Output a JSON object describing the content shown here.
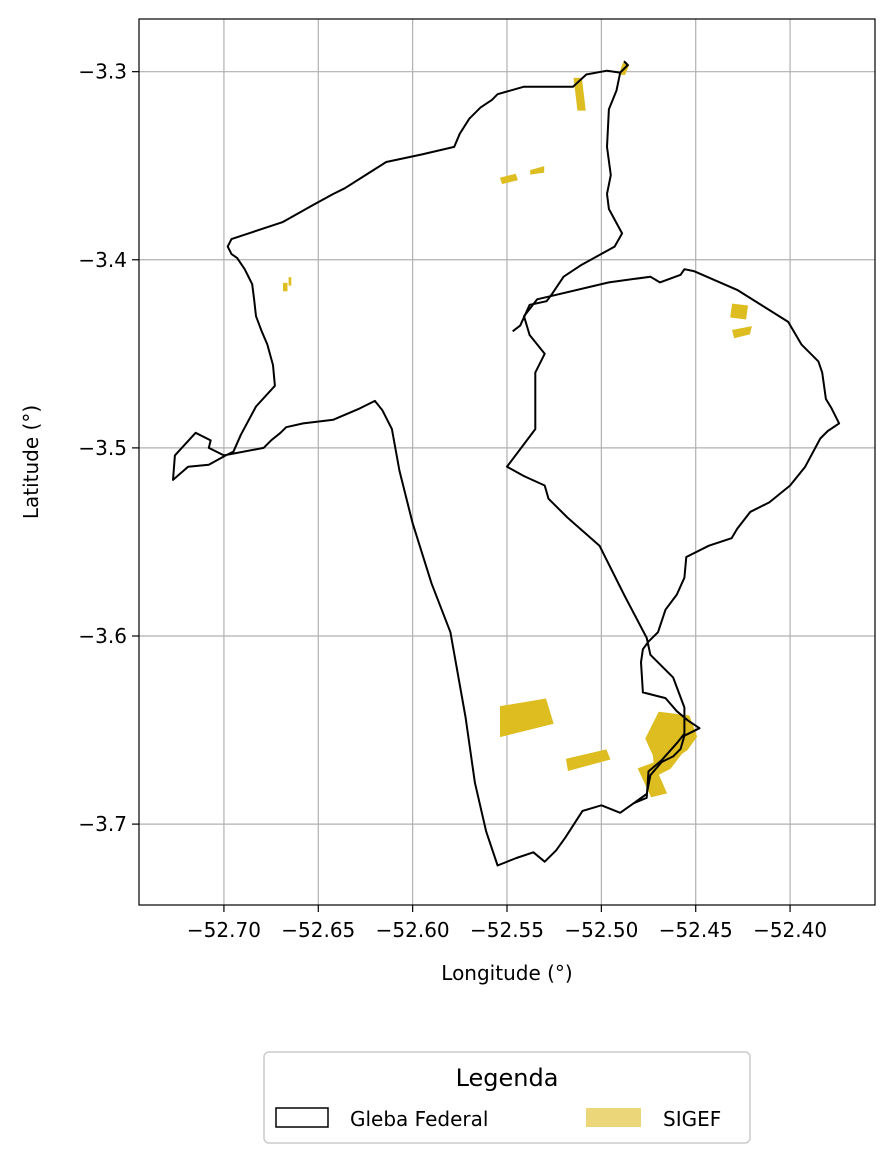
{
  "chart_data": {
    "type": "map",
    "xlabel": "Longitude (°)",
    "ylabel": "Latitude (°)",
    "xlim": [
      -52.745,
      -52.355
    ],
    "ylim": [
      -3.743,
      -3.272
    ],
    "x_ticks": [
      -52.7,
      -52.65,
      -52.6,
      -52.55,
      -52.5,
      -52.45,
      -52.4
    ],
    "x_tick_labels": [
      "−52.70",
      "−52.65",
      "−52.60",
      "−52.55",
      "−52.50",
      "−52.45",
      "−52.40"
    ],
    "y_ticks": [
      -3.3,
      -3.4,
      -3.5,
      -3.6,
      -3.7
    ],
    "y_tick_labels": [
      "−3.3",
      "−3.4",
      "−3.5",
      "−3.6",
      "−3.7"
    ],
    "grid": true,
    "legend": {
      "title": "Legenda",
      "placement": "bottom-center",
      "entries": [
        {
          "label": "Gleba Federal"
        },
        {
          "label": "SIGEF"
        }
      ]
    },
    "colors": {
      "boundary": "#000000",
      "sigef": "#DDBD1F",
      "sigef_legend": "#EBD67A",
      "grid": "#b0b0b0"
    },
    "gleba_federal": [
      [
        -52.488,
        -3.2945
      ],
      [
        -52.486,
        -3.2965
      ],
      [
        -52.49,
        -3.3005
      ],
      [
        -52.497,
        -3.2995
      ],
      [
        -52.508,
        -3.3015
      ],
      [
        -52.515,
        -3.308
      ],
      [
        -52.541,
        -3.308
      ],
      [
        -52.555,
        -3.312
      ],
      [
        -52.558,
        -3.315
      ],
      [
        -52.564,
        -3.319
      ],
      [
        -52.57,
        -3.325
      ],
      [
        -52.575,
        -3.333
      ],
      [
        -52.578,
        -3.34
      ],
      [
        -52.595,
        -3.344
      ],
      [
        -52.614,
        -3.348
      ],
      [
        -52.625,
        -3.355
      ],
      [
        -52.636,
        -3.362
      ],
      [
        -52.642,
        -3.365
      ],
      [
        -52.653,
        -3.371
      ],
      [
        -52.669,
        -3.38
      ],
      [
        -52.69,
        -3.387
      ],
      [
        -52.696,
        -3.389
      ],
      [
        -52.698,
        -3.393
      ],
      [
        -52.696,
        -3.397
      ],
      [
        -52.693,
        -3.399
      ],
      [
        -52.689,
        -3.405
      ],
      [
        -52.685,
        -3.413
      ],
      [
        -52.684,
        -3.421
      ],
      [
        -52.683,
        -3.43
      ],
      [
        -52.68,
        -3.438
      ],
      [
        -52.677,
        -3.445
      ],
      [
        -52.674,
        -3.456
      ],
      [
        -52.673,
        -3.467
      ],
      [
        -52.683,
        -3.478
      ],
      [
        -52.691,
        -3.493
      ],
      [
        -52.695,
        -3.502
      ],
      [
        -52.699,
        -3.504
      ],
      [
        -52.708,
        -3.509
      ],
      [
        -52.719,
        -3.51
      ],
      [
        -52.727,
        -3.517
      ],
      [
        -52.726,
        -3.504
      ],
      [
        -52.715,
        -3.492
      ],
      [
        -52.707,
        -3.496
      ],
      [
        -52.708,
        -3.5
      ],
      [
        -52.7,
        -3.504
      ],
      [
        -52.679,
        -3.5
      ],
      [
        -52.675,
        -3.496
      ],
      [
        -52.67,
        -3.492
      ],
      [
        -52.667,
        -3.489
      ],
      [
        -52.658,
        -3.487
      ],
      [
        -52.642,
        -3.485
      ],
      [
        -52.628,
        -3.479
      ],
      [
        -52.62,
        -3.475
      ],
      [
        -52.616,
        -3.48
      ],
      [
        -52.611,
        -3.49
      ],
      [
        -52.607,
        -3.512
      ],
      [
        -52.6,
        -3.54
      ],
      [
        -52.59,
        -3.572
      ],
      [
        -52.58,
        -3.598
      ],
      [
        -52.572,
        -3.643
      ],
      [
        -52.567,
        -3.678
      ],
      [
        -52.561,
        -3.704
      ],
      [
        -52.555,
        -3.722
      ],
      [
        -52.545,
        -3.718
      ],
      [
        -52.536,
        -3.715
      ],
      [
        -52.53,
        -3.72
      ],
      [
        -52.524,
        -3.714
      ],
      [
        -52.519,
        -3.707
      ],
      [
        -52.51,
        -3.693
      ],
      [
        -52.5,
        -3.69
      ],
      [
        -52.49,
        -3.694
      ],
      [
        -52.483,
        -3.689
      ],
      [
        -52.476,
        -3.686
      ],
      [
        -52.475,
        -3.672
      ],
      [
        -52.468,
        -3.666
      ],
      [
        -52.46,
        -3.657
      ],
      [
        -52.456,
        -3.652
      ],
      [
        -52.456,
        -3.638
      ],
      [
        -52.462,
        -3.622
      ],
      [
        -52.474,
        -3.61
      ],
      [
        -52.476,
        -3.601
      ],
      [
        -52.488,
        -3.578
      ],
      [
        -52.501,
        -3.552
      ],
      [
        -52.518,
        -3.537
      ],
      [
        -52.528,
        -3.527
      ],
      [
        -52.53,
        -3.52
      ],
      [
        -52.541,
        -3.515
      ],
      [
        -52.55,
        -3.51
      ],
      [
        -52.535,
        -3.49
      ],
      [
        -52.535,
        -3.46
      ],
      [
        -52.53,
        -3.45
      ],
      [
        -52.538,
        -3.44
      ],
      [
        -52.541,
        -3.43
      ],
      [
        -52.534,
        -3.421
      ],
      [
        -52.496,
        -3.412
      ],
      [
        -52.474,
        -3.409
      ],
      [
        -52.469,
        -3.412
      ],
      [
        -52.458,
        -3.408
      ],
      [
        -52.456,
        -3.405
      ],
      [
        -52.451,
        -3.406
      ],
      [
        -52.428,
        -3.416
      ],
      [
        -52.401,
        -3.433
      ],
      [
        -52.394,
        -3.445
      ],
      [
        -52.385,
        -3.454
      ],
      [
        -52.383,
        -3.46
      ],
      [
        -52.381,
        -3.474
      ],
      [
        -52.378,
        -3.479
      ],
      [
        -52.374,
        -3.487
      ],
      [
        -52.38,
        -3.491
      ],
      [
        -52.384,
        -3.495
      ],
      [
        -52.392,
        -3.51
      ],
      [
        -52.4,
        -3.52
      ],
      [
        -52.411,
        -3.529
      ],
      [
        -52.421,
        -3.534
      ],
      [
        -52.428,
        -3.543
      ],
      [
        -52.431,
        -3.548
      ],
      [
        -52.443,
        -3.552
      ],
      [
        -52.455,
        -3.558
      ],
      [
        -52.456,
        -3.569
      ],
      [
        -52.46,
        -3.578
      ],
      [
        -52.466,
        -3.586
      ],
      [
        -52.47,
        -3.598
      ],
      [
        -52.475,
        -3.603
      ],
      [
        -52.478,
        -3.607
      ],
      [
        -52.479,
        -3.614
      ],
      [
        -52.478,
        -3.63
      ],
      [
        -52.466,
        -3.633
      ],
      [
        -52.46,
        -3.64
      ],
      [
        -52.454,
        -3.645
      ],
      [
        -52.448,
        -3.649
      ],
      [
        -52.456,
        -3.653
      ],
      [
        -52.458,
        -3.66
      ],
      [
        -52.462,
        -3.664
      ],
      [
        -52.468,
        -3.667
      ],
      [
        -52.474,
        -3.674
      ],
      [
        -52.476,
        -3.684
      ],
      [
        -52.483,
        -3.689
      ],
      [
        -52.49,
        -3.694
      ],
      [
        -52.5,
        -3.69
      ],
      [
        -52.51,
        -3.693
      ],
      [
        -52.519,
        -3.707
      ],
      [
        -52.524,
        -3.714
      ],
      [
        -52.53,
        -3.72
      ],
      [
        -52.536,
        -3.715
      ],
      [
        -52.545,
        -3.718
      ],
      [
        -52.555,
        -3.722
      ]
    ],
    "gleba_federal_north": [
      [
        -52.488,
        -3.2945
      ],
      [
        -52.486,
        -3.2965
      ],
      [
        -52.49,
        -3.3005
      ],
      [
        -52.492,
        -3.31
      ],
      [
        -52.496,
        -3.32
      ],
      [
        -52.497,
        -3.34
      ],
      [
        -52.495,
        -3.355
      ],
      [
        -52.497,
        -3.365
      ],
      [
        -52.496,
        -3.373
      ],
      [
        -52.489,
        -3.386
      ],
      [
        -52.493,
        -3.393
      ],
      [
        -52.502,
        -3.398
      ],
      [
        -52.511,
        -3.403
      ],
      [
        -52.52,
        -3.409
      ],
      [
        -52.526,
        -3.418
      ],
      [
        -52.529,
        -3.422
      ],
      [
        -52.538,
        -3.424
      ],
      [
        -52.543,
        -3.435
      ],
      [
        -52.547,
        -3.438
      ]
    ],
    "sigef": [
      [
        [
          -52.5535,
          -3.6375
        ],
        [
          -52.5295,
          -3.6335
        ],
        [
          -52.5255,
          -3.6465
        ],
        [
          -52.5535,
          -3.6535
        ]
      ],
      [
        [
          -52.5185,
          -3.6655
        ],
        [
          -52.4975,
          -3.6605
        ],
        [
          -52.4955,
          -3.6655
        ],
        [
          -52.5175,
          -3.6715
        ]
      ],
      [
        [
          -52.4695,
          -3.6405
        ],
        [
          -52.4535,
          -3.6425
        ],
        [
          -52.4495,
          -3.6535
        ],
        [
          -52.4545,
          -3.6605
        ],
        [
          -52.4575,
          -3.6625
        ],
        [
          -52.4635,
          -3.6705
        ],
        [
          -52.4715,
          -3.6745
        ],
        [
          -52.4725,
          -3.6635
        ],
        [
          -52.4765,
          -3.6545
        ]
      ],
      [
        [
          -52.4805,
          -3.6705
        ],
        [
          -52.4725,
          -3.6675
        ],
        [
          -52.4655,
          -3.6835
        ],
        [
          -52.4735,
          -3.6855
        ]
      ],
      [
        [
          -52.4305,
          -3.4235
        ],
        [
          -52.4225,
          -3.4245
        ],
        [
          -52.4235,
          -3.4315
        ],
        [
          -52.4315,
          -3.4305
        ]
      ],
      [
        [
          -52.4305,
          -3.4375
        ],
        [
          -52.4205,
          -3.4355
        ],
        [
          -52.4215,
          -3.4395
        ],
        [
          -52.4295,
          -3.4415
        ]
      ],
      [
        [
          -52.5145,
          -3.3035
        ],
        [
          -52.5105,
          -3.3035
        ],
        [
          -52.5085,
          -3.3205
        ],
        [
          -52.5125,
          -3.3205
        ]
      ],
      [
        [
          -52.4885,
          -3.2955
        ],
        [
          -52.4855,
          -3.2965
        ],
        [
          -52.4875,
          -3.3015
        ],
        [
          -52.4905,
          -3.3015
        ]
      ],
      [
        [
          -52.5535,
          -3.3565
        ],
        [
          -52.5455,
          -3.3545
        ],
        [
          -52.5445,
          -3.3575
        ],
        [
          -52.5525,
          -3.3595
        ]
      ],
      [
        [
          -52.5375,
          -3.3525
        ],
        [
          -52.5305,
          -3.3505
        ],
        [
          -52.5305,
          -3.3535
        ],
        [
          -52.5375,
          -3.3545
        ]
      ],
      [
        [
          -52.6685,
          -3.4125
        ],
        [
          -52.6665,
          -3.4125
        ],
        [
          -52.6665,
          -3.4165
        ],
        [
          -52.6685,
          -3.4165
        ]
      ],
      [
        [
          -52.6655,
          -3.4095
        ],
        [
          -52.6645,
          -3.4095
        ],
        [
          -52.6645,
          -3.4135
        ],
        [
          -52.6655,
          -3.4135
        ]
      ]
    ]
  }
}
